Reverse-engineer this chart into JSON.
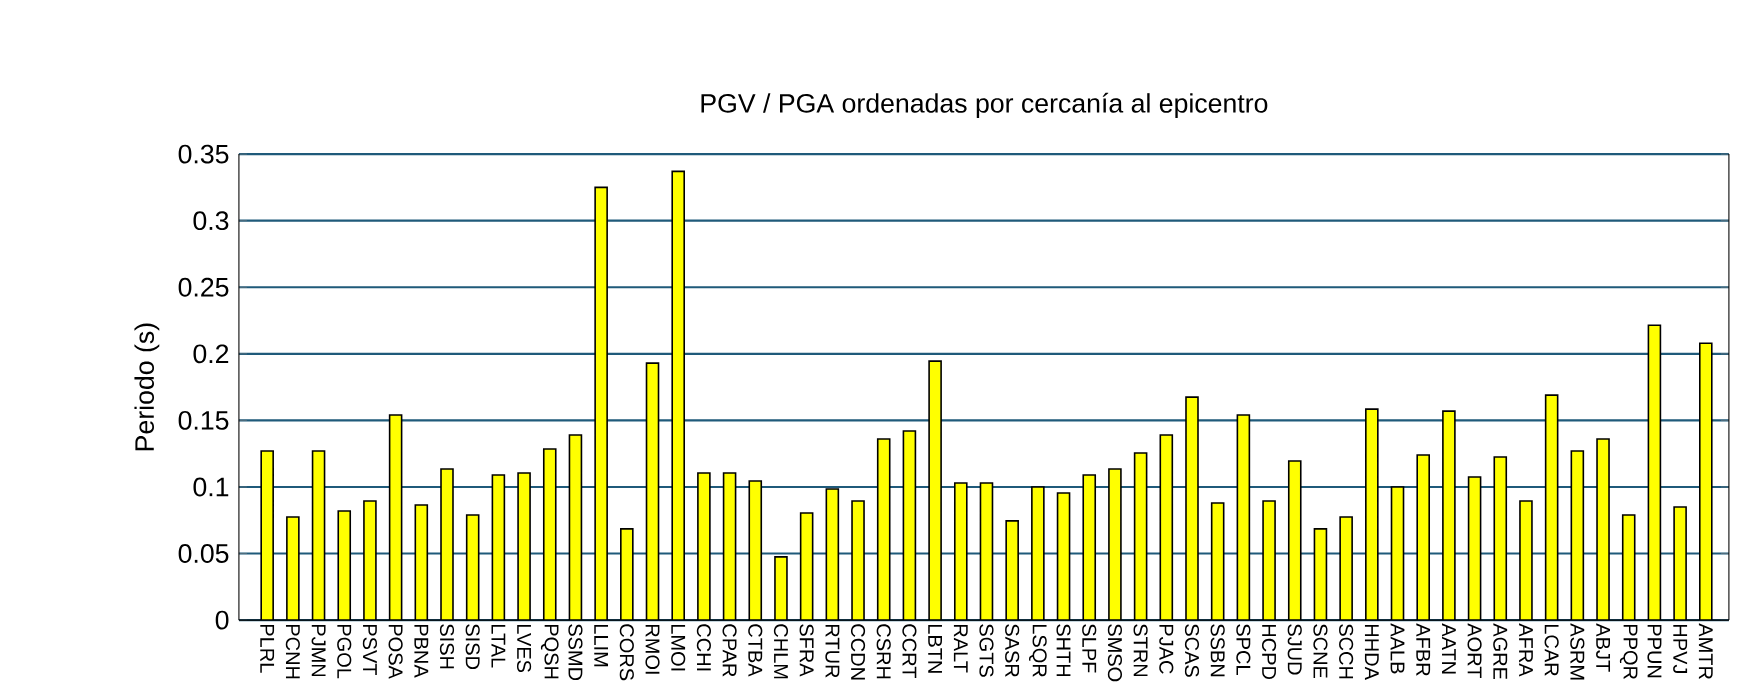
{
  "chart_data": {
    "type": "bar",
    "title": "PGV / PGA ordenadas por cercanía al epicentro",
    "ylabel": "Periodo (s)",
    "categories": [
      "PLRL",
      "PCNH",
      "PJMN",
      "PGOL",
      "PSVT",
      "POSA",
      "PBNA",
      "SISH",
      "SISD",
      "LTAL",
      "LVES",
      "PQSH",
      "SSMD",
      "LLIM",
      "CORS",
      "RMOI",
      "LMOI",
      "CCHI",
      "CPAR",
      "CTBA",
      "CHLM",
      "SFRA",
      "RTUR",
      "CCDN",
      "CSRH",
      "CCRT",
      "LBTN",
      "RALT",
      "SGTS",
      "SASR",
      "LSQR",
      "SHTH",
      "SLPF",
      "SMSO",
      "STRN",
      "PJAC",
      "SCAS",
      "SSBN",
      "SPCL",
      "HCPD",
      "SJUD",
      "SCNE",
      "SCCH",
      "HHDA",
      "AALB",
      "AFBR",
      "AATN",
      "AORT",
      "AGRE",
      "AFRA",
      "LCAR",
      "ASRM",
      "ABJT",
      "PPQR",
      "PPUN",
      "HPVJ",
      "AMTR"
    ],
    "values": [
      0.127,
      0.0775,
      0.127,
      0.082,
      0.0895,
      0.154,
      0.0865,
      0.1135,
      0.079,
      0.109,
      0.1105,
      0.1285,
      0.139,
      0.325,
      0.0685,
      0.193,
      0.337,
      0.1105,
      0.1105,
      0.1045,
      0.0475,
      0.0805,
      0.0985,
      0.0895,
      0.136,
      0.142,
      0.1945,
      0.103,
      0.103,
      0.0745,
      0.1,
      0.0955,
      0.109,
      0.1135,
      0.1255,
      0.139,
      0.1675,
      0.088,
      0.154,
      0.0895,
      0.1195,
      0.0685,
      0.0775,
      0.1585,
      0.1,
      0.124,
      0.157,
      0.1075,
      0.1225,
      0.0895,
      0.169,
      0.127,
      0.136,
      0.079,
      0.2215,
      0.085,
      0.208
    ],
    "color": "#ffff00",
    "ylim": [
      0,
      0.35
    ],
    "yticks": [
      0,
      0.05,
      0.1,
      0.15,
      0.2,
      0.25,
      0.3,
      0.35
    ],
    "grid": "y"
  }
}
